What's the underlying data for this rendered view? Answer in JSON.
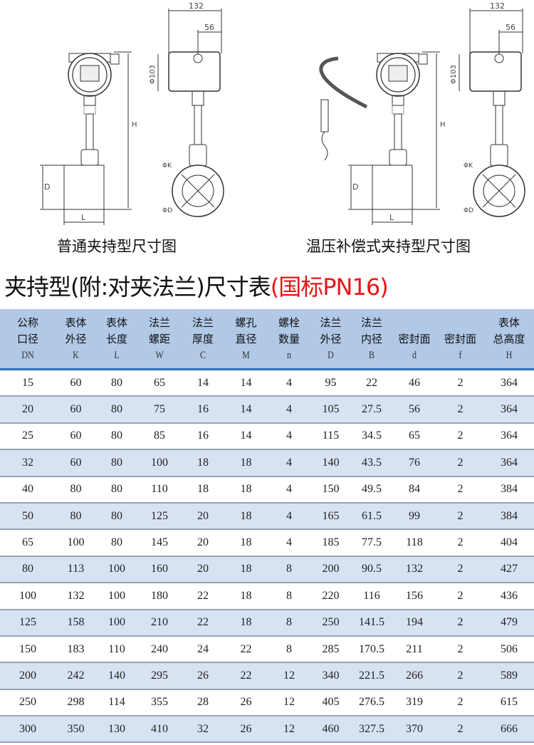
{
  "drawings": [
    {
      "caption": "普通夹持型尺寸图",
      "dims": {
        "width": "132",
        "offset": "56",
        "head_dia": "Φ103",
        "height": "H",
        "pipe_dia": "D",
        "length": "L",
        "k_dia": "ΦK",
        "d_dia": "ΦD"
      }
    },
    {
      "caption": "温压补偿式夹持型尺寸图",
      "dims": {
        "width": "132",
        "offset": "56",
        "head_dia": "Φ103",
        "height": "H",
        "pipe_dia": "D",
        "length": "L",
        "k_dia": "ΦK",
        "d_dia": "ΦD"
      }
    }
  ],
  "table_title": {
    "main": "夹持型(附:对夹法兰)尺寸表",
    "standard": "(国标PN16)"
  },
  "table": {
    "headers": [
      {
        "l1": "公称",
        "l2": "口径",
        "sym": "DN"
      },
      {
        "l1": "表体",
        "l2": "外径",
        "sym": "K"
      },
      {
        "l1": "表体",
        "l2": "长度",
        "sym": "L"
      },
      {
        "l1": "法兰",
        "l2": "螺距",
        "sym": "W"
      },
      {
        "l1": "法兰",
        "l2": "厚度",
        "sym": "C"
      },
      {
        "l1": "螺孔",
        "l2": "直径",
        "sym": "M"
      },
      {
        "l1": "螺栓",
        "l2": "数量",
        "sym": "n"
      },
      {
        "l1": "法兰",
        "l2": "外径",
        "sym": "D"
      },
      {
        "l1": "法兰",
        "l2": "内径",
        "sym": "B"
      },
      {
        "l1": "",
        "l2": "密封面",
        "sym": "d"
      },
      {
        "l1": "",
        "l2": "密封面",
        "sym": "f"
      },
      {
        "l1": "表体",
        "l2": "总高度",
        "sym": "H"
      }
    ],
    "rows": [
      [
        "15",
        "60",
        "80",
        "65",
        "14",
        "14",
        "4",
        "95",
        "22",
        "46",
        "2",
        "364"
      ],
      [
        "20",
        "60",
        "80",
        "75",
        "16",
        "14",
        "4",
        "105",
        "27.5",
        "56",
        "2",
        "364"
      ],
      [
        "25",
        "60",
        "80",
        "85",
        "16",
        "14",
        "4",
        "115",
        "34.5",
        "65",
        "2",
        "364"
      ],
      [
        "32",
        "60",
        "80",
        "100",
        "18",
        "18",
        "4",
        "140",
        "43.5",
        "76",
        "2",
        "364"
      ],
      [
        "40",
        "80",
        "80",
        "110",
        "18",
        "18",
        "4",
        "150",
        "49.5",
        "84",
        "2",
        "384"
      ],
      [
        "50",
        "80",
        "80",
        "125",
        "20",
        "18",
        "4",
        "165",
        "61.5",
        "99",
        "2",
        "384"
      ],
      [
        "65",
        "100",
        "80",
        "145",
        "20",
        "18",
        "4",
        "185",
        "77.5",
        "118",
        "2",
        "404"
      ],
      [
        "80",
        "113",
        "100",
        "160",
        "20",
        "18",
        "8",
        "200",
        "90.5",
        "132",
        "2",
        "427"
      ],
      [
        "100",
        "132",
        "100",
        "180",
        "22",
        "18",
        "8",
        "220",
        "116",
        "156",
        "2",
        "436"
      ],
      [
        "125",
        "158",
        "100",
        "210",
        "22",
        "18",
        "8",
        "250",
        "141.5",
        "194",
        "2",
        "479"
      ],
      [
        "150",
        "183",
        "110",
        "240",
        "24",
        "22",
        "8",
        "285",
        "170.5",
        "211",
        "2",
        "506"
      ],
      [
        "200",
        "242",
        "140",
        "295",
        "26",
        "22",
        "12",
        "340",
        "221.5",
        "266",
        "2",
        "589"
      ],
      [
        "250",
        "298",
        "114",
        "355",
        "28",
        "26",
        "12",
        "405",
        "276.5",
        "319",
        "2",
        "615"
      ],
      [
        "300",
        "350",
        "130",
        "410",
        "32",
        "26",
        "12",
        "460",
        "327.5",
        "370",
        "2",
        "666"
      ]
    ]
  }
}
